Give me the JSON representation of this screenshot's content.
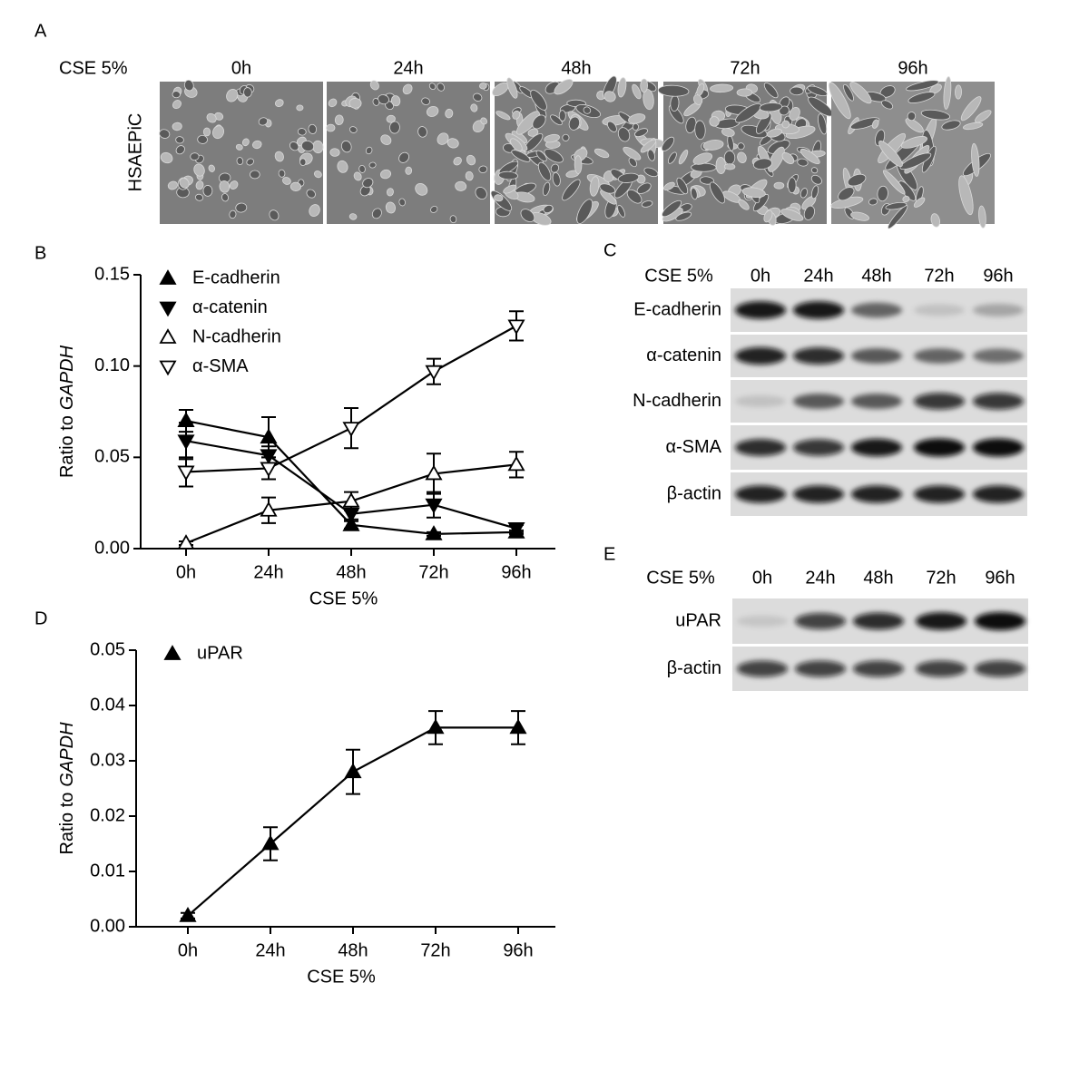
{
  "panel_a": {
    "letter": "A",
    "condition": "CSE 5%",
    "cell_line": "HSAEPiC",
    "timepoints": [
      "0h",
      "24h",
      "48h",
      "72h",
      "96h"
    ]
  },
  "chart_data": [
    {
      "type": "line",
      "letter": "B",
      "ylabel": "Ratio to",
      "ylabel_italic": "GAPDH",
      "xlabel": "CSE 5%",
      "categories": [
        "0h",
        "24h",
        "48h",
        "72h",
        "96h"
      ],
      "ylim": [
        0,
        0.15
      ],
      "yticks": [
        {
          "value": 0,
          "label": "0.00"
        },
        {
          "value": 0.05,
          "label": "0.05"
        },
        {
          "value": 0.1,
          "label": "0.10"
        },
        {
          "value": 0.15,
          "label": "0.15"
        }
      ],
      "legend": "upper-left",
      "series": [
        {
          "name": "E-cadherin",
          "color": "#000000",
          "marker": "triangle-up",
          "filled": true,
          "values": [
            0.07,
            0.061,
            0.013,
            0.008,
            0.009
          ],
          "errors": [
            0.006,
            0.011,
            0.002,
            0.001,
            0.001
          ]
        },
        {
          "name": "α-catenin",
          "color": "#000000",
          "marker": "triangle-down",
          "filled": true,
          "values": [
            0.059,
            0.051,
            0.019,
            0.024,
            0.011
          ],
          "errors": [
            0.01,
            0.005,
            0.003,
            0.007,
            0.002
          ]
        },
        {
          "name": "N-cadherin",
          "color": "#000000",
          "marker": "triangle-up",
          "filled": false,
          "values": [
            0.003,
            0.021,
            0.026,
            0.041,
            0.046
          ],
          "errors": [
            0.001,
            0.007,
            0.005,
            0.011,
            0.007
          ]
        },
        {
          "name": "α-SMA",
          "color": "#000000",
          "marker": "triangle-down",
          "filled": false,
          "values": [
            0.042,
            0.044,
            0.066,
            0.097,
            0.122
          ],
          "errors": [
            0.008,
            0.006,
            0.011,
            0.007,
            0.008
          ]
        }
      ]
    },
    {
      "type": "line",
      "letter": "D",
      "ylabel": "Ratio to",
      "ylabel_italic": "GAPDH",
      "xlabel": "CSE 5%",
      "categories": [
        "0h",
        "24h",
        "48h",
        "72h",
        "96h"
      ],
      "ylim": [
        0,
        0.05
      ],
      "yticks": [
        {
          "value": 0,
          "label": "0.00"
        },
        {
          "value": 0.01,
          "label": "0.01"
        },
        {
          "value": 0.02,
          "label": "0.02"
        },
        {
          "value": 0.03,
          "label": "0.03"
        },
        {
          "value": 0.04,
          "label": "0.04"
        },
        {
          "value": 0.05,
          "label": "0.05"
        }
      ],
      "legend": "upper-left",
      "series": [
        {
          "name": "uPAR",
          "color": "#000000",
          "marker": "triangle-up",
          "filled": true,
          "values": [
            0.002,
            0.015,
            0.028,
            0.036,
            0.036
          ],
          "errors": [
            0.0005,
            0.003,
            0.004,
            0.003,
            0.003
          ]
        }
      ]
    }
  ],
  "panel_c": {
    "letter": "C",
    "condition": "CSE 5%",
    "timepoints": [
      "0h",
      "24h",
      "48h",
      "72h",
      "96h"
    ],
    "rows": [
      "E-cadherin",
      "α-catenin",
      "N-cadherin",
      "α-SMA",
      "β-actin"
    ]
  },
  "panel_e": {
    "letter": "E",
    "condition": "CSE 5%",
    "timepoints": [
      "0h",
      "24h",
      "48h",
      "72h",
      "96h"
    ],
    "rows": [
      "uPAR",
      "β-actin"
    ]
  }
}
